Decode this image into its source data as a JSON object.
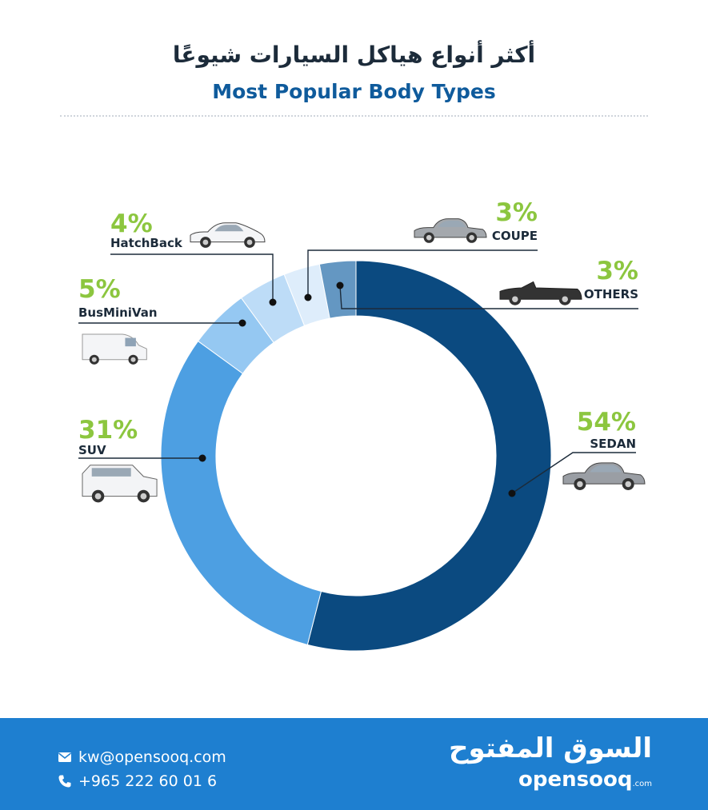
{
  "header": {
    "title_ar": "أكثر أنواع هياكل السيارات شيوعًا",
    "title_en": "Most Popular Body Types"
  },
  "chart_data": {
    "type": "donut",
    "title": "Most Popular Body Types",
    "series": [
      {
        "name": "SEDAN",
        "value": 54,
        "label": "54%",
        "color": "#0b4a80",
        "icon": "sedan-car-icon"
      },
      {
        "name": "SUV",
        "value": 31,
        "label": "31%",
        "color": "#4d9fe2",
        "icon": "suv-car-icon"
      },
      {
        "name": "BusMiniVan",
        "value": 5,
        "label": "5%",
        "color": "#95c8f2",
        "icon": "minivan-icon"
      },
      {
        "name": "HatchBack",
        "value": 4,
        "label": "4%",
        "color": "#bddcf7",
        "icon": "hatchback-car-icon"
      },
      {
        "name": "COUPE",
        "value": 3,
        "label": "3%",
        "color": "#deedfb",
        "icon": "coupe-car-icon"
      },
      {
        "name": "OTHERS",
        "value": 3,
        "label": "3%",
        "color": "#6497c2",
        "icon": "convertible-car-icon"
      }
    ],
    "start_angle": "12 o'clock",
    "direction": "clockwise"
  },
  "footer": {
    "email": "kw@opensooq.com",
    "phone": "+965 222 60 01 6",
    "logo_ar": "السوق المفتوح",
    "logo_en": "opensooq",
    "logo_en_suffix": ".com"
  }
}
